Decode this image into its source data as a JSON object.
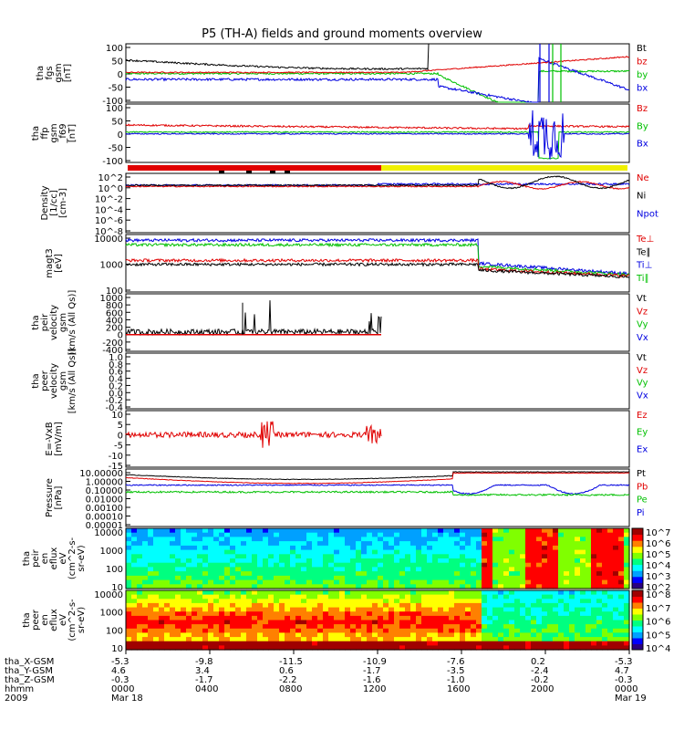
{
  "title": "P5 (TH-A) fields and ground moments overview",
  "colors": {
    "black": "#000000",
    "red": "#e00000",
    "green": "#00c000",
    "blue": "#0000e0",
    "yellow": "#f0f000"
  },
  "chart_data": [
    {
      "type": "line",
      "ylabel": [
        "tha",
        "fgs",
        "gsm",
        "[nT]"
      ],
      "yticks": [
        "100",
        "50",
        "0",
        "-50",
        "-100"
      ],
      "ylim": [
        -120,
        110
      ],
      "series": [
        {
          "name": "Bt",
          "color": "black"
        },
        {
          "name": "bz",
          "color": "red"
        },
        {
          "name": "by",
          "color": "green"
        },
        {
          "name": "bx",
          "color": "blue"
        }
      ]
    },
    {
      "type": "line",
      "ylabel": [
        "tha",
        "ffp",
        "gsm",
        "_f69",
        "[nT]"
      ],
      "yticks": [
        "100",
        "50",
        "0",
        "-50",
        "-100"
      ],
      "ylim": [
        -120,
        110
      ],
      "series": [
        {
          "name": "Bz",
          "color": "red"
        },
        {
          "name": "By",
          "color": "green"
        },
        {
          "name": "Bx",
          "color": "blue"
        }
      ]
    },
    {
      "type": "line",
      "ylabel": [
        "Density",
        "[1/cc]",
        "[cm-3]"
      ],
      "yticks": [
        "10^2",
        "10^0",
        "10^-2",
        "10^-4",
        "10^-6",
        "10^-8"
      ],
      "log": true,
      "series": [
        {
          "name": "Ne",
          "color": "red"
        },
        {
          "name": "Ni",
          "color": "black"
        },
        {
          "name": "Npot",
          "color": "blue"
        }
      ]
    },
    {
      "type": "line",
      "ylabel": [
        "magt3",
        "[eV]"
      ],
      "yticks": [
        "10000",
        "1000",
        "100"
      ],
      "log": true,
      "ylim": [
        10,
        10000
      ],
      "series": [
        {
          "name": "Te⊥",
          "color": "red"
        },
        {
          "name": "Te∥",
          "color": "black"
        },
        {
          "name": "Ti⊥",
          "color": "blue"
        },
        {
          "name": "Ti∥",
          "color": "green"
        }
      ]
    },
    {
      "type": "line",
      "ylabel": [
        "tha",
        "peir",
        "velocity",
        "gsm",
        "[km/s (All Qs)]"
      ],
      "yticks": [
        "1000",
        "800",
        "600",
        "400",
        "200",
        "0",
        "-200",
        "-400"
      ],
      "ylim": [
        -400,
        1000
      ],
      "series": [
        {
          "name": "Vt",
          "color": "black"
        },
        {
          "name": "Vz",
          "color": "red"
        },
        {
          "name": "Vy",
          "color": "green"
        },
        {
          "name": "Vx",
          "color": "blue"
        }
      ]
    },
    {
      "type": "line",
      "ylabel": [
        "tha",
        "peer",
        "velocity",
        "gsm",
        "[km/s (All Qs)]"
      ],
      "yticks": [
        "1.0",
        "0.8",
        "0.6",
        "0.4",
        "0.2",
        "0.0",
        "-0.2",
        "-0.4"
      ],
      "ylim": [
        -0.4,
        1.0
      ],
      "series": [
        {
          "name": "Vt",
          "color": "black"
        },
        {
          "name": "Vz",
          "color": "red"
        },
        {
          "name": "Vy",
          "color": "green"
        },
        {
          "name": "Vx",
          "color": "blue"
        }
      ]
    },
    {
      "type": "line",
      "ylabel": [
        "E=-VxB",
        "[mV/m]"
      ],
      "yticks": [
        "10",
        "5",
        "0",
        "-5",
        "-10",
        "-15"
      ],
      "ylim": [
        -15,
        10
      ],
      "series": [
        {
          "name": "Ez",
          "color": "red"
        },
        {
          "name": "Ey",
          "color": "green"
        },
        {
          "name": "Ex",
          "color": "blue"
        }
      ]
    },
    {
      "type": "line",
      "ylabel": [
        "Pressure",
        "[nPa]"
      ],
      "yticks": [
        "10.00000",
        "1.00000",
        "0.10000",
        "0.01000",
        "0.00100",
        "0.00010",
        "0.00001"
      ],
      "log": true,
      "series": [
        {
          "name": "Pt",
          "color": "black"
        },
        {
          "name": "Pb",
          "color": "red"
        },
        {
          "name": "Pe",
          "color": "green"
        },
        {
          "name": "Pi",
          "color": "blue"
        }
      ]
    },
    {
      "type": "heatmap",
      "ylabel": [
        "tha",
        "peir",
        "en",
        "eflux",
        "eV",
        "(cm^2-s-",
        "sr-eV)"
      ],
      "yticks": [
        "10000",
        "1000",
        "100",
        "10"
      ],
      "log": true,
      "colorbar": [
        "10^7",
        "10^6",
        "10^5",
        "10^4",
        "10^3",
        "10^2"
      ]
    },
    {
      "type": "heatmap",
      "ylabel": [
        "tha",
        "peer",
        "en",
        "eflux",
        "eV",
        "(cm^2-s-",
        "sr-eV)"
      ],
      "yticks": [
        "10000",
        "1000",
        "100",
        "10"
      ],
      "log": true,
      "colorbar": [
        "10^8",
        "10^7",
        "10^6",
        "10^5",
        "10^4"
      ]
    }
  ],
  "x_axis": {
    "rows": [
      {
        "label": "tha_X-GSM",
        "values": [
          "-5.3",
          "-9.8",
          "-11.5",
          "-10.9",
          "-7.6",
          "0.2",
          "-5.3"
        ]
      },
      {
        "label": "tha_Y-GSM",
        "values": [
          "4.6",
          "3.4",
          "0.6",
          "-1.7",
          "-3.5",
          "-2.4",
          "4.7"
        ]
      },
      {
        "label": "tha_Z-GSM",
        "values": [
          "-0.3",
          "-1.7",
          "-2.2",
          "-1.6",
          "-1.0",
          "-0.2",
          "-0.3"
        ]
      },
      {
        "label": "hhmm",
        "values": [
          "0000",
          "0400",
          "0800",
          "1200",
          "1600",
          "2000",
          "0000"
        ]
      },
      {
        "label": "2009",
        "values": [
          "Mar 18",
          "",
          "",
          "",
          "",
          "",
          "Mar 19"
        ]
      }
    ]
  }
}
